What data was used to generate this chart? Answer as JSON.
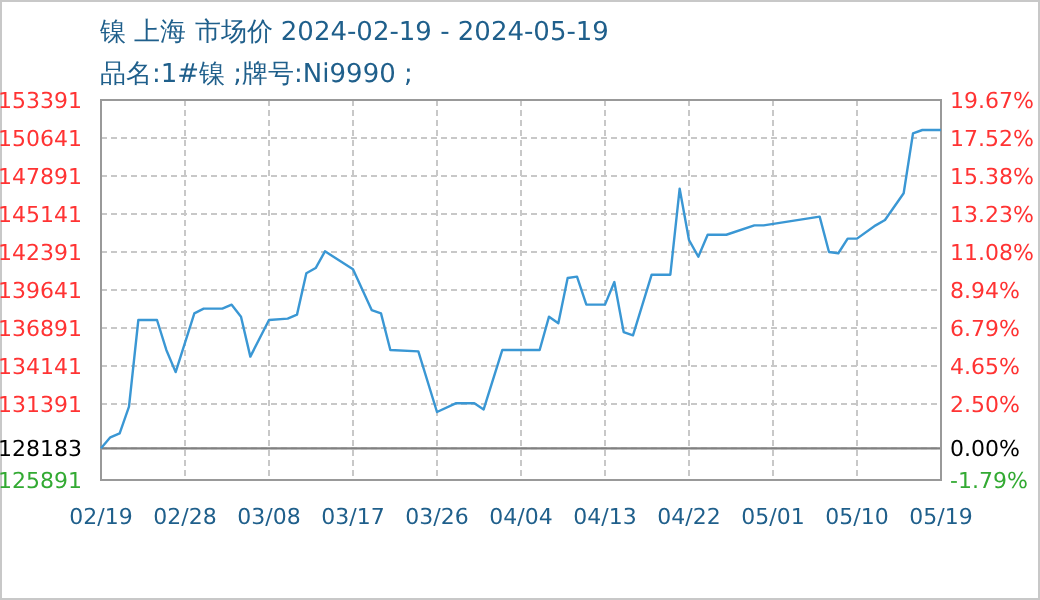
{
  "chart_data": {
    "type": "line",
    "title": "镍 上海 市场价 2024-02-19 - 2024-05-19",
    "subtitle": "品名:1#镍 ;牌号:Ni9990 ;",
    "x": [
      "2024-02-19",
      "2024-02-20",
      "2024-02-21",
      "2024-02-22",
      "2024-02-23",
      "2024-02-25",
      "2024-02-26",
      "2024-02-27",
      "2024-02-29",
      "2024-03-01",
      "2024-03-03",
      "2024-03-04",
      "2024-03-05",
      "2024-03-06",
      "2024-03-08",
      "2024-03-10",
      "2024-03-11",
      "2024-03-12",
      "2024-03-13",
      "2024-03-14",
      "2024-03-17",
      "2024-03-19",
      "2024-03-20",
      "2024-03-21",
      "2024-03-24",
      "2024-03-26",
      "2024-03-28",
      "2024-03-30",
      "2024-03-31",
      "2024-04-02",
      "2024-04-06",
      "2024-04-07",
      "2024-04-08",
      "2024-04-09",
      "2024-04-10",
      "2024-04-11",
      "2024-04-13",
      "2024-04-14",
      "2024-04-15",
      "2024-04-16",
      "2024-04-18",
      "2024-04-20",
      "2024-04-21",
      "2024-04-22",
      "2024-04-23",
      "2024-04-24",
      "2024-04-26",
      "2024-04-29",
      "2024-04-30",
      "2024-05-06",
      "2024-05-07",
      "2024-05-08",
      "2024-05-09",
      "2024-05-10",
      "2024-05-12",
      "2024-05-13",
      "2024-05-15",
      "2024-05-16",
      "2024-05-17",
      "2024-05-19"
    ],
    "series": [
      {
        "color": "#3a97d4",
        "values": [
          128183,
          128980,
          129270,
          131200,
          137470,
          137470,
          135300,
          133700,
          137950,
          138290,
          138290,
          138580,
          137710,
          134820,
          137470,
          137570,
          137860,
          140850,
          141230,
          142440,
          141140,
          138190,
          137950,
          135300,
          135200,
          130810,
          131440,
          131440,
          131000,
          135300,
          135300,
          137710,
          137230,
          140510,
          140610,
          138580,
          138580,
          140220,
          136600,
          136360,
          140750,
          140750,
          146970,
          143260,
          142050,
          143640,
          143640,
          144320,
          144320,
          144950,
          142390,
          142300,
          143360,
          143360,
          144320,
          144710,
          146640,
          150980,
          151220,
          151220
        ]
      }
    ],
    "xlim": [
      "2024-02-19",
      "2024-05-19"
    ],
    "xticks": [
      {
        "value": "2024-02-19",
        "label": "02/19"
      },
      {
        "value": "2024-02-28",
        "label": "02/28"
      },
      {
        "value": "2024-03-08",
        "label": "03/08"
      },
      {
        "value": "2024-03-17",
        "label": "03/17"
      },
      {
        "value": "2024-03-26",
        "label": "03/26"
      },
      {
        "value": "2024-04-04",
        "label": "04/04"
      },
      {
        "value": "2024-04-13",
        "label": "04/13"
      },
      {
        "value": "2024-04-22",
        "label": "04/22"
      },
      {
        "value": "2024-05-01",
        "label": "05/01"
      },
      {
        "value": "2024-05-10",
        "label": "05/10"
      },
      {
        "value": "2024-05-19",
        "label": "05/19"
      }
    ],
    "ylim": [
      125891,
      153391
    ],
    "yticks": [
      125891,
      128183,
      131391,
      134141,
      136891,
      139641,
      142391,
      145141,
      147891,
      150641,
      153391
    ],
    "y2lim": [
      -1.79,
      19.67
    ],
    "y2ticks": [
      {
        "value": -1.79,
        "label": "-1.79%"
      },
      {
        "value": 0,
        "label": "0.00%"
      },
      {
        "value": 2.5,
        "label": "2.50%"
      },
      {
        "value": 4.65,
        "label": "4.65%"
      },
      {
        "value": 6.79,
        "label": "6.79%"
      },
      {
        "value": 8.94,
        "label": "8.94%"
      },
      {
        "value": 11.08,
        "label": "11.08%"
      },
      {
        "value": 13.23,
        "label": "13.23%"
      },
      {
        "value": 15.38,
        "label": "15.38%"
      },
      {
        "value": 17.52,
        "label": "17.52%"
      },
      {
        "value": 19.67,
        "label": "19.67%"
      }
    ],
    "grid": true,
    "ref_lines": [
      {
        "axis": "y",
        "value": 128183,
        "color": "#808080"
      }
    ]
  }
}
